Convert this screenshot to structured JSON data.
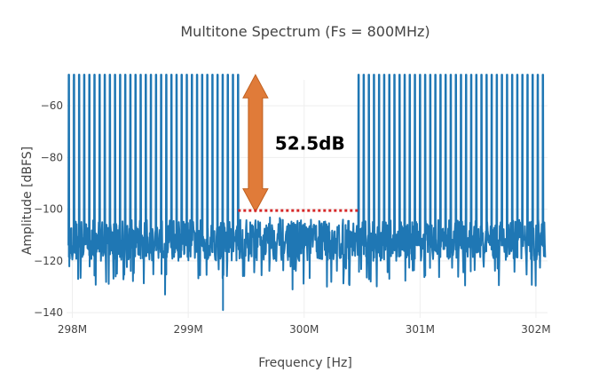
{
  "chart_data": {
    "type": "line",
    "title": "Multitone Spectrum (Fs = 800MHz)",
    "xlabel": "Frequency [Hz]",
    "ylabel": "Amplitude [dBFS]",
    "xlim": [
      297.95,
      302.1
    ],
    "ylim": [
      -142,
      -50
    ],
    "x_ticks": [
      {
        "value": 298,
        "label": "298M"
      },
      {
        "value": 299,
        "label": "299M"
      },
      {
        "value": 300,
        "label": "300M"
      },
      {
        "value": 301,
        "label": "301M"
      },
      {
        "value": 302,
        "label": "302M"
      }
    ],
    "y_ticks": [
      {
        "value": -60,
        "label": "−60"
      },
      {
        "value": -80,
        "label": "−80"
      },
      {
        "value": -100,
        "label": "−100"
      },
      {
        "value": -120,
        "label": "−120"
      },
      {
        "value": -140,
        "label": "−140"
      }
    ],
    "grid": true,
    "series": [
      {
        "color": "#1f77b4",
        "tone_peak_dbfs": -48,
        "noise_floor_dbfs": -110,
        "tone_band_low": {
          "start": 297.97,
          "end": 299.43,
          "count": 34
        },
        "tone_band_high": {
          "start": 300.47,
          "end": 302.06,
          "count": 37
        },
        "notable_dips": [
          {
            "x": 298.05,
            "y": -127
          },
          {
            "x": 298.8,
            "y": -133
          },
          {
            "x": 299.3,
            "y": -139
          },
          {
            "x": 299.9,
            "y": -131
          }
        ]
      }
    ],
    "annotations": [
      {
        "type": "arrow",
        "x": 299.58,
        "y_top": -48,
        "y_bottom": -101,
        "color": "#e07b39"
      },
      {
        "type": "text",
        "text": "52.5dB",
        "x": 300.05,
        "y": -77
      },
      {
        "type": "hline",
        "y": -100.5,
        "x_start": 299.43,
        "x_end": 300.47,
        "color": "#d62728",
        "style": "dotted"
      }
    ]
  }
}
